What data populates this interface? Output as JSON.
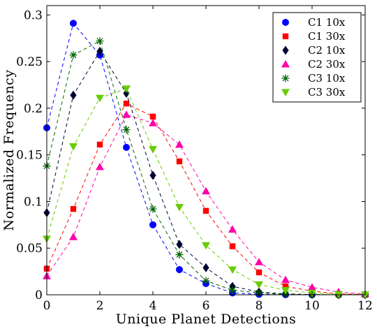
{
  "chart_data": {
    "type": "line",
    "xlabel": "Unique Planet Detections",
    "ylabel": "Normalized Frequency",
    "xlim": [
      0,
      12
    ],
    "ylim": [
      0,
      0.31
    ],
    "x_ticks": [
      0,
      2,
      4,
      6,
      8,
      10,
      12
    ],
    "x_tick_labels": [
      "0",
      "2",
      "4",
      "6",
      "8",
      "10",
      "12"
    ],
    "y_ticks": [
      0,
      0.05,
      0.1,
      0.15,
      0.2,
      0.25,
      0.3
    ],
    "y_tick_labels": [
      "0",
      "0.05",
      "0.1",
      "0.15",
      "0.2",
      "0.25",
      "0.3"
    ],
    "grid": false,
    "legend_position": "top-right",
    "line_style": "dashed",
    "x": [
      0,
      1,
      2,
      3,
      4,
      5,
      6,
      7,
      8,
      9,
      10,
      11,
      12
    ],
    "series": [
      {
        "name": "C1 10x",
        "color": "#0000ff",
        "marker": "circle",
        "values": [
          0.179,
          0.291,
          0.257,
          0.158,
          0.075,
          0.027,
          0.012,
          0.002,
          0.0005,
          0.0001,
          0.0,
          0.0,
          0.0
        ]
      },
      {
        "name": "C1 30x",
        "color": "#ff0000",
        "marker": "square",
        "values": [
          0.028,
          0.092,
          0.161,
          0.205,
          0.191,
          0.143,
          0.09,
          0.052,
          0.024,
          0.009,
          0.004,
          0.001,
          0.0003
        ]
      },
      {
        "name": "C2 10x",
        "color": "#000033",
        "marker": "diamond",
        "values": [
          0.088,
          0.214,
          0.261,
          0.216,
          0.128,
          0.054,
          0.029,
          0.009,
          0.003,
          0.001,
          0.0003,
          0.0,
          0.0
        ]
      },
      {
        "name": "C2 30x",
        "color": "#ff00aa",
        "marker": "triangle-up",
        "values": [
          0.02,
          0.062,
          0.137,
          0.193,
          0.184,
          0.161,
          0.111,
          0.07,
          0.035,
          0.016,
          0.008,
          0.003,
          0.0008
        ]
      },
      {
        "name": "C3 10x",
        "color": "#006600",
        "marker": "asterisk",
        "values": [
          0.138,
          0.257,
          0.272,
          0.177,
          0.092,
          0.043,
          0.015,
          0.005,
          0.002,
          0.0005,
          0.0001,
          0.0,
          0.0
        ]
      },
      {
        "name": "C3 30x",
        "color": "#66cc00",
        "marker": "triangle-down",
        "values": [
          0.06,
          0.159,
          0.211,
          0.221,
          0.156,
          0.094,
          0.053,
          0.027,
          0.011,
          0.005,
          0.002,
          0.0006,
          0.0002
        ]
      }
    ]
  }
}
